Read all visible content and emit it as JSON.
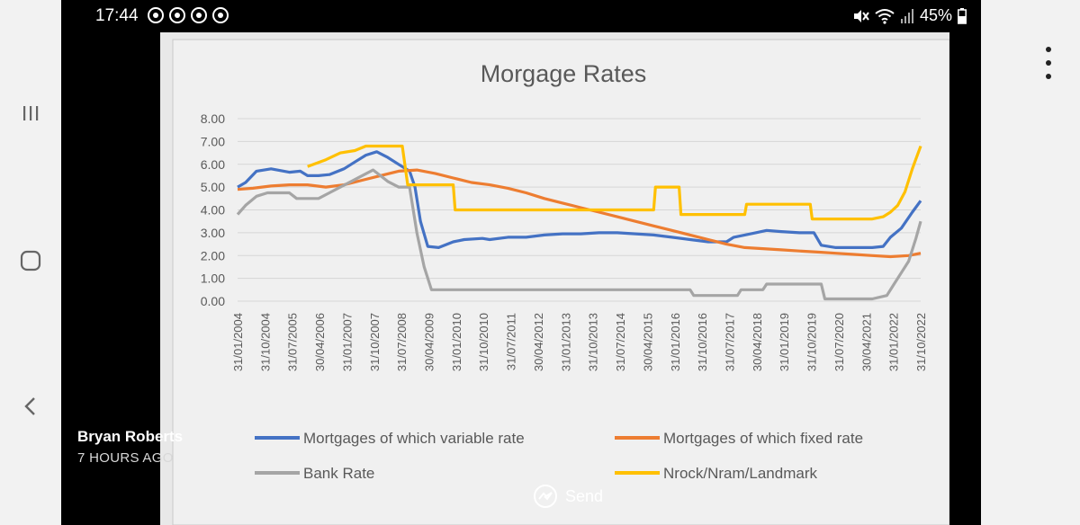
{
  "status_bar": {
    "time": "17:44",
    "battery": "45%"
  },
  "message": {
    "sender_name": "Bryan Roberts",
    "sent_time": "7 HOURS AGO"
  },
  "actions": {
    "send_label": "Send"
  },
  "icons": {
    "nav_recent": "recent-apps-icon",
    "nav_home": "home-icon",
    "nav_back": "back-icon",
    "more": "more-vertical-icon",
    "messenger": "messenger-icon",
    "mute": "mute-icon",
    "wifi": "wifi-icon",
    "signal": "signal-icon",
    "battery": "battery-icon"
  },
  "chart_data": {
    "type": "line",
    "title": "Morgage Rates",
    "ylim": [
      0,
      8
    ],
    "yticks": [
      "0.00",
      "1.00",
      "2.00",
      "3.00",
      "4.00",
      "5.00",
      "6.00",
      "7.00",
      "8.00"
    ],
    "xtick_labels": [
      "31/01/2004",
      "31/10/2004",
      "31/07/2005",
      "30/04/2006",
      "31/01/2007",
      "31/10/2007",
      "31/07/2008",
      "30/04/2009",
      "31/01/2010",
      "31/10/2010",
      "31/07/2011",
      "30/04/2012",
      "31/01/2013",
      "31/10/2013",
      "31/07/2014",
      "30/04/2015",
      "31/01/2016",
      "31/10/2016",
      "31/07/2017",
      "30/04/2018",
      "31/01/2019",
      "31/10/2019",
      "31/07/2020",
      "30/04/2021",
      "31/01/2022",
      "31/10/2022"
    ],
    "x_range": [
      2004.08,
      2022.83
    ],
    "grid": true,
    "legend_position": "bottom",
    "series": [
      {
        "name": "Mortgages of which variable rate",
        "color": "#4472c4",
        "points": [
          [
            2004.08,
            5.0
          ],
          [
            2004.3,
            5.2
          ],
          [
            2004.6,
            5.7
          ],
          [
            2005.0,
            5.8
          ],
          [
            2005.5,
            5.65
          ],
          [
            2005.8,
            5.7
          ],
          [
            2006.0,
            5.5
          ],
          [
            2006.3,
            5.5
          ],
          [
            2006.6,
            5.55
          ],
          [
            2007.0,
            5.8
          ],
          [
            2007.3,
            6.1
          ],
          [
            2007.6,
            6.4
          ],
          [
            2007.9,
            6.55
          ],
          [
            2008.2,
            6.3
          ],
          [
            2008.5,
            6.0
          ],
          [
            2008.8,
            5.7
          ],
          [
            2008.95,
            5.0
          ],
          [
            2009.1,
            3.5
          ],
          [
            2009.3,
            2.4
          ],
          [
            2009.6,
            2.35
          ],
          [
            2010.0,
            2.6
          ],
          [
            2010.3,
            2.7
          ],
          [
            2010.8,
            2.75
          ],
          [
            2011.0,
            2.7
          ],
          [
            2011.5,
            2.8
          ],
          [
            2012.0,
            2.8
          ],
          [
            2012.5,
            2.9
          ],
          [
            2013.0,
            2.95
          ],
          [
            2013.5,
            2.95
          ],
          [
            2014.0,
            3.0
          ],
          [
            2014.5,
            3.0
          ],
          [
            2015.0,
            2.95
          ],
          [
            2015.5,
            2.9
          ],
          [
            2016.0,
            2.8
          ],
          [
            2016.5,
            2.7
          ],
          [
            2017.0,
            2.6
          ],
          [
            2017.5,
            2.6
          ],
          [
            2017.7,
            2.8
          ],
          [
            2018.0,
            2.9
          ],
          [
            2018.3,
            3.0
          ],
          [
            2018.6,
            3.1
          ],
          [
            2019.0,
            3.05
          ],
          [
            2019.5,
            3.0
          ],
          [
            2019.9,
            3.0
          ],
          [
            2020.1,
            2.45
          ],
          [
            2020.5,
            2.35
          ],
          [
            2021.0,
            2.35
          ],
          [
            2021.5,
            2.35
          ],
          [
            2021.8,
            2.4
          ],
          [
            2022.0,
            2.8
          ],
          [
            2022.3,
            3.2
          ],
          [
            2022.6,
            3.9
          ],
          [
            2022.83,
            4.4
          ]
        ]
      },
      {
        "name": "Mortgages of which fixed rate",
        "color": "#ed7d31",
        "points": [
          [
            2004.08,
            4.9
          ],
          [
            2004.5,
            4.95
          ],
          [
            2005.0,
            5.05
          ],
          [
            2005.5,
            5.1
          ],
          [
            2006.0,
            5.1
          ],
          [
            2006.5,
            5.0
          ],
          [
            2007.0,
            5.1
          ],
          [
            2007.5,
            5.3
          ],
          [
            2008.0,
            5.5
          ],
          [
            2008.5,
            5.7
          ],
          [
            2009.0,
            5.75
          ],
          [
            2009.5,
            5.6
          ],
          [
            2010.0,
            5.4
          ],
          [
            2010.5,
            5.2
          ],
          [
            2011.0,
            5.1
          ],
          [
            2011.5,
            4.95
          ],
          [
            2012.0,
            4.75
          ],
          [
            2012.5,
            4.5
          ],
          [
            2013.0,
            4.3
          ],
          [
            2013.5,
            4.1
          ],
          [
            2014.0,
            3.9
          ],
          [
            2014.5,
            3.7
          ],
          [
            2015.0,
            3.5
          ],
          [
            2015.5,
            3.3
          ],
          [
            2016.0,
            3.1
          ],
          [
            2016.5,
            2.9
          ],
          [
            2017.0,
            2.7
          ],
          [
            2017.5,
            2.5
          ],
          [
            2018.0,
            2.35
          ],
          [
            2018.5,
            2.3
          ],
          [
            2019.0,
            2.25
          ],
          [
            2019.5,
            2.2
          ],
          [
            2020.0,
            2.15
          ],
          [
            2020.5,
            2.1
          ],
          [
            2021.0,
            2.05
          ],
          [
            2021.5,
            2.0
          ],
          [
            2022.0,
            1.95
          ],
          [
            2022.5,
            2.0
          ],
          [
            2022.83,
            2.1
          ]
        ]
      },
      {
        "name": "Bank Rate",
        "color": "#a5a5a5",
        "points": [
          [
            2004.08,
            3.8
          ],
          [
            2004.3,
            4.2
          ],
          [
            2004.6,
            4.6
          ],
          [
            2004.9,
            4.75
          ],
          [
            2005.5,
            4.75
          ],
          [
            2005.7,
            4.5
          ],
          [
            2006.3,
            4.5
          ],
          [
            2006.6,
            4.75
          ],
          [
            2006.9,
            5.0
          ],
          [
            2007.2,
            5.25
          ],
          [
            2007.5,
            5.5
          ],
          [
            2007.8,
            5.75
          ],
          [
            2008.0,
            5.5
          ],
          [
            2008.2,
            5.25
          ],
          [
            2008.5,
            5.0
          ],
          [
            2008.8,
            5.0
          ],
          [
            2009.0,
            3.0
          ],
          [
            2009.2,
            1.5
          ],
          [
            2009.4,
            0.5
          ],
          [
            2012.0,
            0.5
          ],
          [
            2014.0,
            0.5
          ],
          [
            2016.5,
            0.5
          ],
          [
            2016.6,
            0.25
          ],
          [
            2017.8,
            0.25
          ],
          [
            2017.9,
            0.5
          ],
          [
            2018.5,
            0.5
          ],
          [
            2018.6,
            0.75
          ],
          [
            2020.1,
            0.75
          ],
          [
            2020.2,
            0.1
          ],
          [
            2021.5,
            0.1
          ],
          [
            2021.9,
            0.25
          ],
          [
            2022.1,
            0.75
          ],
          [
            2022.3,
            1.25
          ],
          [
            2022.5,
            1.75
          ],
          [
            2022.7,
            2.75
          ],
          [
            2022.83,
            3.5
          ]
        ]
      },
      {
        "name": "Nrock/Nram/Landmark",
        "color": "#ffc000",
        "points": [
          [
            2006.0,
            5.9
          ],
          [
            2006.5,
            6.2
          ],
          [
            2006.9,
            6.5
          ],
          [
            2007.3,
            6.6
          ],
          [
            2007.6,
            6.8
          ],
          [
            2008.0,
            6.8
          ],
          [
            2008.6,
            6.8
          ],
          [
            2008.75,
            5.1
          ],
          [
            2009.0,
            5.1
          ],
          [
            2009.5,
            5.1
          ],
          [
            2010.0,
            5.1
          ],
          [
            2010.05,
            4.0
          ],
          [
            2012.0,
            4.0
          ],
          [
            2014.0,
            4.0
          ],
          [
            2015.5,
            4.0
          ],
          [
            2015.55,
            5.0
          ],
          [
            2016.2,
            5.0
          ],
          [
            2016.25,
            3.8
          ],
          [
            2018.0,
            3.8
          ],
          [
            2018.05,
            4.25
          ],
          [
            2019.8,
            4.25
          ],
          [
            2019.85,
            3.6
          ],
          [
            2021.5,
            3.6
          ],
          [
            2021.8,
            3.7
          ],
          [
            2022.0,
            3.9
          ],
          [
            2022.2,
            4.2
          ],
          [
            2022.4,
            4.8
          ],
          [
            2022.6,
            5.8
          ],
          [
            2022.83,
            6.8
          ]
        ]
      }
    ]
  }
}
